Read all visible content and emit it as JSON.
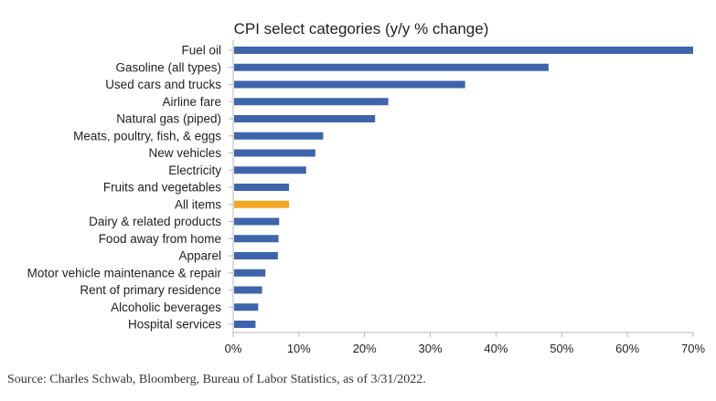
{
  "chart_data": {
    "type": "bar",
    "orientation": "horizontal",
    "title": "CPI select categories (y/y % change)",
    "xlabel": "",
    "ylabel": "",
    "categories": [
      "Fuel oil",
      "Gasoline (all types)",
      "Used cars and trucks",
      "Airline fare",
      "Natural gas (piped)",
      "Meats, poultry, fish, & eggs",
      "New vehicles",
      "Electricity",
      "Fruits and vegetables",
      "All items",
      "Dairy & related products",
      "Food away from home",
      "Apparel",
      "Motor vehicle maintenance & repair",
      "Rent of primary residence",
      "Alcoholic beverages",
      "Hospital services"
    ],
    "values": [
      70.1,
      48.0,
      35.3,
      23.6,
      21.6,
      13.7,
      12.5,
      11.1,
      8.5,
      8.5,
      7.0,
      6.9,
      6.8,
      4.9,
      4.4,
      3.8,
      3.4
    ],
    "highlight_category": "All items",
    "xlim": [
      0,
      70
    ],
    "xticks": [
      0,
      10,
      20,
      30,
      40,
      50,
      60,
      70
    ],
    "xtick_labels": [
      "0%",
      "10%",
      "20%",
      "30%",
      "40%",
      "50%",
      "60%",
      "70%"
    ],
    "colors": {
      "bar": "#3e64ac",
      "highlight": "#f5a623",
      "axis": "#b8b8b8"
    },
    "grid": false,
    "legend": "none"
  },
  "footer": {
    "source": "Source: Charles Schwab, Bloomberg, Bureau of Labor Statistics, as of 3/31/2022."
  }
}
